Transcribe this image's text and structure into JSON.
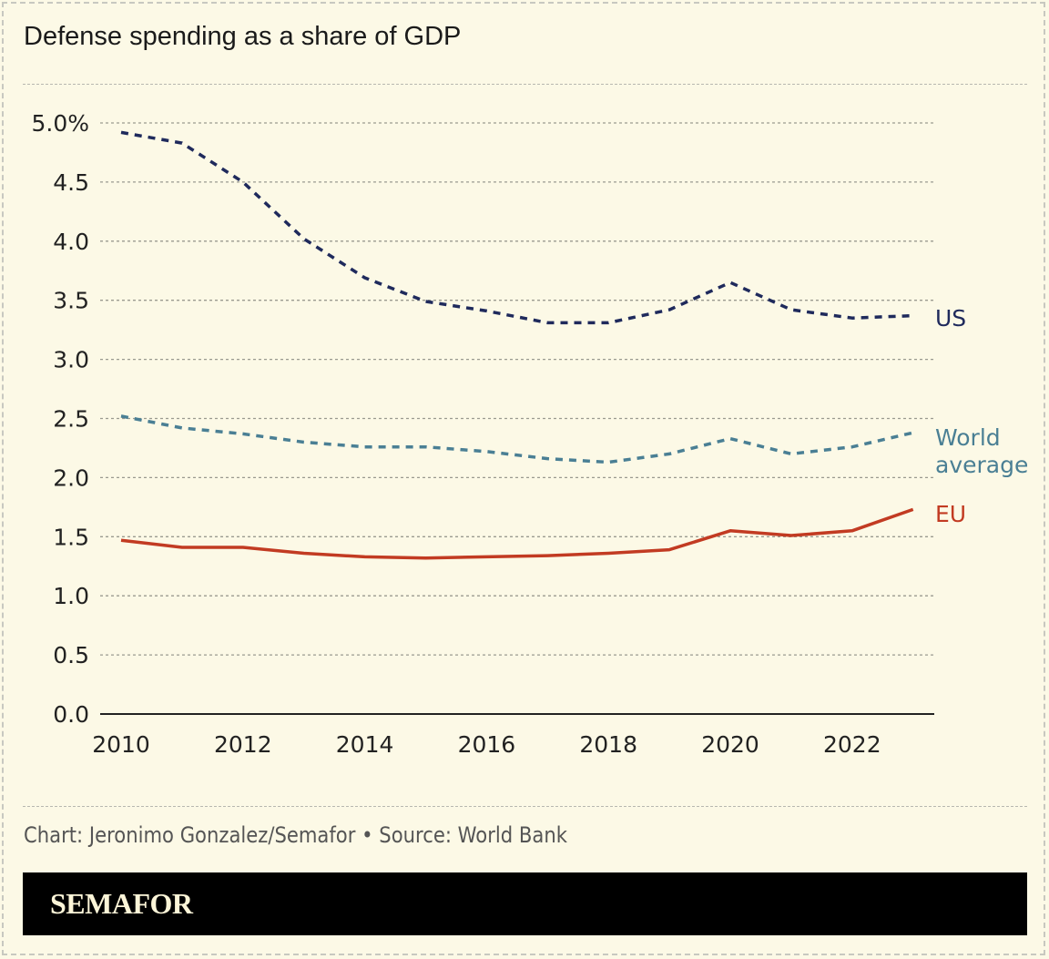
{
  "title": "Defense spending as a share of GDP",
  "footer": "Chart: Jeronimo Gonzalez/Semafor • Source: World Bank",
  "logo": "SEMAFOR",
  "chart_data": {
    "type": "line",
    "title": "Defense spending as a share of GDP",
    "x": [
      2010,
      2011,
      2012,
      2013,
      2014,
      2015,
      2016,
      2017,
      2018,
      2019,
      2020,
      2021,
      2022,
      2023
    ],
    "xticks": [
      "2010",
      "2012",
      "2014",
      "2016",
      "2018",
      "2020",
      "2022"
    ],
    "yticks": [
      "0.0",
      "0.5",
      "1.0",
      "1.5",
      "2.0",
      "2.5",
      "3.0",
      "3.5",
      "4.0",
      "4.5",
      "5.0%"
    ],
    "ylim": [
      0,
      5
    ],
    "grid": true,
    "series": [
      {
        "name": "US",
        "color": "#1f2a5c",
        "style": "dashed",
        "values": [
          4.92,
          4.83,
          4.5,
          4.02,
          3.69,
          3.49,
          3.41,
          3.31,
          3.31,
          3.42,
          3.65,
          3.42,
          3.35,
          3.37
        ]
      },
      {
        "name": "World average",
        "color": "#4a7f94",
        "style": "dashed",
        "values": [
          2.52,
          2.42,
          2.37,
          2.3,
          2.26,
          2.26,
          2.22,
          2.16,
          2.13,
          2.2,
          2.33,
          2.2,
          2.26,
          2.38
        ]
      },
      {
        "name": "EU",
        "color": "#c23b22",
        "style": "solid",
        "values": [
          1.47,
          1.41,
          1.41,
          1.36,
          1.33,
          1.32,
          1.33,
          1.34,
          1.36,
          1.39,
          1.55,
          1.51,
          1.55,
          1.73
        ]
      }
    ]
  }
}
